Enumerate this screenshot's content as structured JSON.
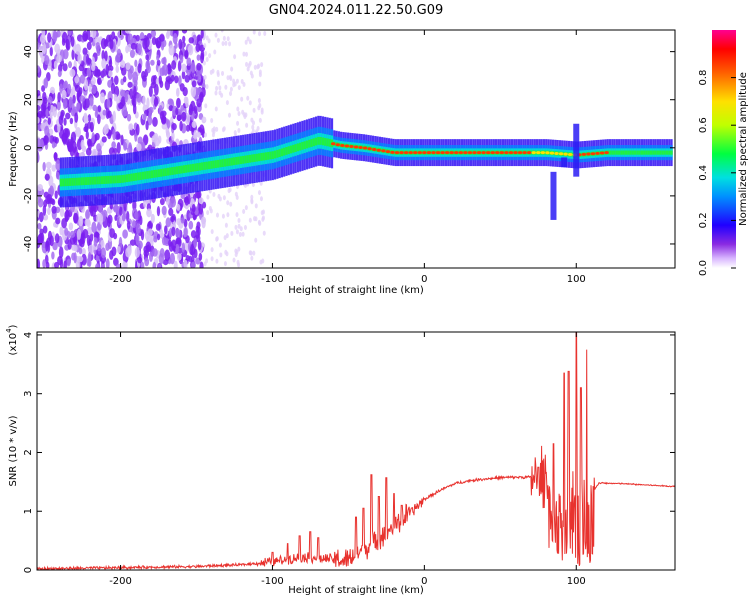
{
  "title": "GN04.2024.011.22.50.G09",
  "chart_data": [
    {
      "type": "heatmap",
      "xlabel": "Height of straight line (km)",
      "ylabel": "Frequency (Hz)",
      "xlim": [
        -255,
        165
      ],
      "ylim": [
        -50,
        49
      ],
      "xticks": [
        -200,
        -100,
        0,
        100
      ],
      "yticks": [
        -40,
        -20,
        0,
        20,
        40
      ],
      "colorbar": {
        "label": "Normalized spectral amplitude",
        "range": [
          0.0,
          1.0
        ],
        "ticks": [
          0.0,
          0.2,
          0.4,
          0.6,
          0.8
        ]
      },
      "ridge": {
        "x": [
          -255,
          -200,
          -150,
          -100,
          -70,
          -55,
          -40,
          -20,
          0,
          50,
          80,
          100,
          120,
          165
        ],
        "y": [
          -15,
          -13,
          -8,
          -3,
          3,
          1,
          0,
          -2,
          -2,
          -2,
          -2,
          -3,
          -2,
          -2
        ]
      }
    },
    {
      "type": "line",
      "xlabel": "Height of straight line (km)",
      "ylabel": "SNR (10 * v/v)",
      "yscale_label": "(x10",
      "yscale_exp": "4",
      "yscale_close": ")",
      "xlim": [
        -255,
        165
      ],
      "ylim": [
        0,
        4.05
      ],
      "xticks": [
        -200,
        -100,
        0,
        100
      ],
      "yticks": [
        0,
        1,
        2,
        3,
        4
      ],
      "color": "#e8322e",
      "envelope": {
        "x": [
          -255,
          -200,
          -150,
          -120,
          -100,
          -80,
          -60,
          -50,
          -40,
          -30,
          -20,
          -10,
          0,
          10,
          20,
          30,
          40,
          50,
          60,
          70,
          80,
          85,
          90,
          100,
          110,
          115,
          130,
          165
        ],
        "y": [
          0.02,
          0.04,
          0.06,
          0.09,
          0.14,
          0.22,
          0.18,
          0.16,
          0.35,
          0.55,
          0.75,
          0.95,
          1.2,
          1.35,
          1.47,
          1.52,
          1.55,
          1.57,
          1.58,
          1.58,
          1.58,
          1.0,
          1.0,
          1.2,
          1.3,
          1.48,
          1.47,
          1.42
        ]
      },
      "spikes": [
        {
          "x": -100,
          "y": 0.3
        },
        {
          "x": -90,
          "y": 0.45
        },
        {
          "x": -82,
          "y": 0.58
        },
        {
          "x": -75,
          "y": 0.65
        },
        {
          "x": -70,
          "y": 0.55
        },
        {
          "x": -45,
          "y": 0.9
        },
        {
          "x": -40,
          "y": 1.05
        },
        {
          "x": -35,
          "y": 1.62
        },
        {
          "x": -30,
          "y": 1.25
        },
        {
          "x": -25,
          "y": 1.57
        },
        {
          "x": -20,
          "y": 1.3
        },
        {
          "x": -15,
          "y": 1.1
        },
        {
          "x": 75,
          "y": 1.75
        },
        {
          "x": 85,
          "y": 2.15
        },
        {
          "x": 92,
          "y": 3.35
        },
        {
          "x": 95,
          "y": 3.38
        },
        {
          "x": 100,
          "y": 4.05
        },
        {
          "x": 103,
          "y": 3.1
        },
        {
          "x": 107,
          "y": 3.75
        }
      ]
    }
  ]
}
